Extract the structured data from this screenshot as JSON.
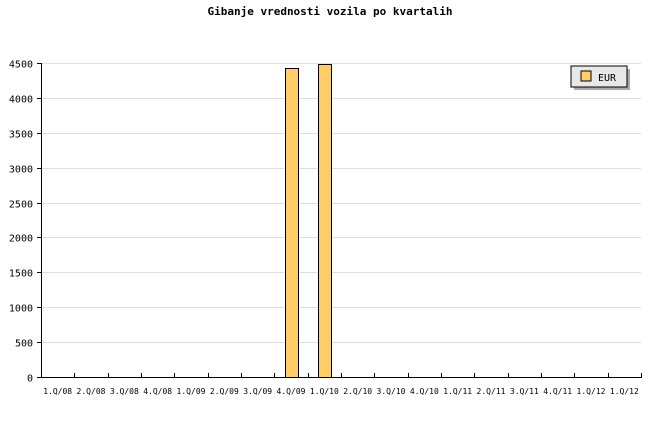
{
  "chart_data": {
    "type": "bar",
    "title": "Gibanje vrednosti vozila po kvartalih",
    "xlabel": "",
    "ylabel": "",
    "categories": [
      "1.Q/08",
      "2.Q/08",
      "3.Q/08",
      "4.Q/08",
      "1.Q/09",
      "2.Q/09",
      "3.Q/09",
      "4.Q/09",
      "1.Q/10",
      "2.Q/10",
      "3.Q/10",
      "4.Q/10",
      "1.Q/11",
      "2.Q/11",
      "3.Q/11",
      "4.Q/11",
      "1.Q/12",
      "1.Q/12"
    ],
    "series": [
      {
        "name": "EUR",
        "color": "#ffcc66",
        "values": [
          0,
          0,
          0,
          0,
          0,
          0,
          0,
          4430,
          4480,
          0,
          0,
          0,
          0,
          0,
          0,
          0,
          0,
          0
        ]
      }
    ],
    "ylim": [
      0,
      4500
    ],
    "yticks": [
      0,
      500,
      1000,
      1500,
      2000,
      2500,
      3000,
      3500,
      4000,
      4500
    ],
    "grid": true,
    "legend": "top-right"
  }
}
